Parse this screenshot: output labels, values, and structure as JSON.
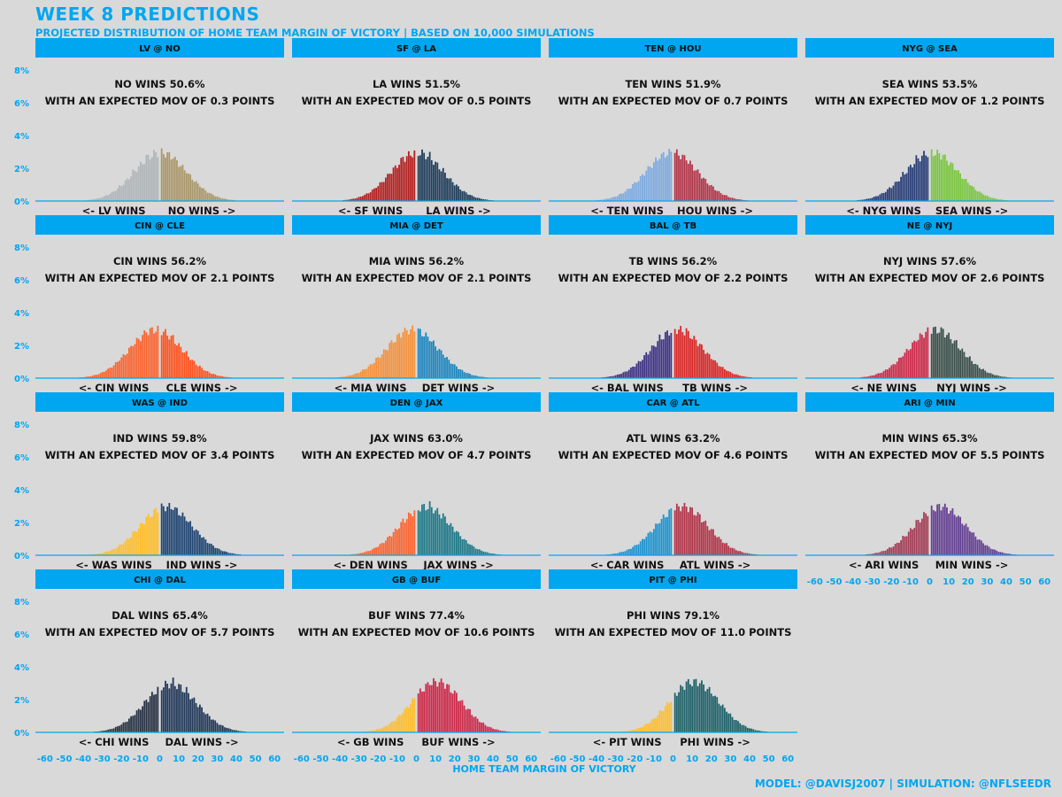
{
  "title": "Week 8 Predictions",
  "subtitle": "Projected distribution of home team margin of victory | Based on 10,000 simulations",
  "xaxis_title": "Home Team Margin of Victory",
  "credit": "Model: @DavisJ2007 | Simulation: @nflseedR",
  "colors": {
    "accent": "#00a6f0",
    "background": "#d9d9d9",
    "text": "#111111"
  },
  "chart_data": {
    "type": "bar",
    "x_ticks": [
      -60,
      -50,
      -40,
      -30,
      -20,
      -10,
      0,
      10,
      20,
      30,
      40,
      50,
      60
    ],
    "x_tick_labels": [
      "-60",
      "-50",
      "-40",
      "-30",
      "-20",
      "-10",
      "0",
      "10",
      "20",
      "30",
      "40",
      "50",
      "60"
    ],
    "xlim": [
      -65,
      65
    ],
    "y_ticks": [
      0,
      2,
      4,
      6,
      8
    ],
    "y_tick_labels": [
      "0%",
      "2%",
      "4%",
      "6%",
      "8%"
    ],
    "ylim": [
      0,
      8
    ],
    "panels": [
      {
        "matchup": "LV @ NO",
        "win_text": "NO wins 50.6%",
        "mov_text": "with an expected MOV of 0.3 points",
        "away_label": "<- LV wins",
        "home_label": "NO wins ->",
        "mov": 0.3,
        "sd": 13.5,
        "away_color": "#a5acaf",
        "home_color": "#a08a58"
      },
      {
        "matchup": "SF @ LA",
        "win_text": "LA wins 51.5%",
        "mov_text": "with an expected MOV of 0.5 points",
        "away_label": "<- SF wins",
        "home_label": "LA wins ->",
        "mov": 0.5,
        "sd": 13.5,
        "away_color": "#aa0000",
        "home_color": "#002244"
      },
      {
        "matchup": "TEN @ HOU",
        "win_text": "TEN wins 51.9%",
        "mov_text": "with an expected MOV of 0.7 points",
        "away_label": "<- TEN wins",
        "home_label": "HOU wins ->",
        "mov": -0.7,
        "sd": 13.5,
        "away_color": "#6ca0dc",
        "home_color": "#a71930"
      },
      {
        "matchup": "NYG @ SEA",
        "win_text": "SEA wins 53.5%",
        "mov_text": "with an expected MOV of 1.2 points",
        "away_label": "<- NYG wins",
        "home_label": "SEA wins ->",
        "mov": 1.2,
        "sd": 13.5,
        "away_color": "#0b2265",
        "home_color": "#69be28"
      },
      {
        "matchup": "CIN @ CLE",
        "win_text": "CIN wins 56.2%",
        "mov_text": "with an expected MOV of 2.1 points",
        "away_label": "<- CIN wins",
        "home_label": "CLE wins ->",
        "mov": -2.1,
        "sd": 13.5,
        "away_color": "#fb4f14",
        "home_color": "#ff3c00"
      },
      {
        "matchup": "MIA @ DET",
        "win_text": "MIA wins 56.2%",
        "mov_text": "with an expected MOV of 2.1 points",
        "away_label": "<- MIA wins",
        "home_label": "DET wins ->",
        "mov": -2.1,
        "sd": 13.5,
        "away_color": "#f58220",
        "home_color": "#0076b6"
      },
      {
        "matchup": "BAL @ TB",
        "win_text": "TB wins 56.2%",
        "mov_text": "with an expected MOV of 2.2 points",
        "away_label": "<- BAL wins",
        "home_label": "TB wins ->",
        "mov": 2.2,
        "sd": 13.5,
        "away_color": "#241773",
        "home_color": "#d50a0a"
      },
      {
        "matchup": "NE @ NYJ",
        "win_text": "NYJ wins 57.6%",
        "mov_text": "with an expected MOV of 2.6 points",
        "away_label": "<- NE wins",
        "home_label": "NYJ wins ->",
        "mov": 2.6,
        "sd": 13.5,
        "away_color": "#c60c30",
        "home_color": "#203731"
      },
      {
        "matchup": "WAS @ IND",
        "win_text": "IND wins 59.8%",
        "mov_text": "with an expected MOV of 3.4 points",
        "away_label": "<- WAS wins",
        "home_label": "IND wins ->",
        "mov": 3.4,
        "sd": 13.5,
        "away_color": "#ffb612",
        "home_color": "#002c5f"
      },
      {
        "matchup": "DEN @ JAX",
        "win_text": "JAX wins 63.0%",
        "mov_text": "with an expected MOV of 4.7 points",
        "away_label": "<- DEN wins",
        "home_label": "JAX wins ->",
        "mov": 4.7,
        "sd": 13.5,
        "away_color": "#fb4f14",
        "home_color": "#006778"
      },
      {
        "matchup": "CAR @ ATL",
        "win_text": "ATL wins 63.2%",
        "mov_text": "with an expected MOV of 4.6 points",
        "away_label": "<- CAR wins",
        "home_label": "ATL wins ->",
        "mov": 4.6,
        "sd": 13.5,
        "away_color": "#0085ca",
        "home_color": "#a71930"
      },
      {
        "matchup": "ARI @ MIN",
        "win_text": "MIN wins 65.3%",
        "mov_text": "with an expected MOV of 5.5 points",
        "away_label": "<- ARI wins",
        "home_label": "MIN wins ->",
        "mov": 5.5,
        "sd": 13.5,
        "away_color": "#97233f",
        "home_color": "#4f2683"
      },
      {
        "matchup": "CHI @ DAL",
        "win_text": "DAL wins 65.4%",
        "mov_text": "with an expected MOV of 5.7 points",
        "away_label": "<- CHI wins",
        "home_label": "DAL wins ->",
        "mov": 5.7,
        "sd": 13.5,
        "away_color": "#0b162a",
        "home_color": "#041e42"
      },
      {
        "matchup": "GB @ BUF",
        "win_text": "BUF wins 77.4%",
        "mov_text": "with an expected MOV of 10.6 points",
        "away_label": "<- GB wins",
        "home_label": "BUF wins ->",
        "mov": 10.6,
        "sd": 13.0,
        "away_color": "#ffb612",
        "home_color": "#c60c30"
      },
      {
        "matchup": "PIT @ PHI",
        "win_text": "PHI wins 79.1%",
        "mov_text": "with an expected MOV of 11.0 points",
        "away_label": "<- PIT wins",
        "home_label": "PHI wins ->",
        "mov": 11.0,
        "sd": 13.0,
        "away_color": "#ffb612",
        "home_color": "#004c54"
      }
    ]
  }
}
